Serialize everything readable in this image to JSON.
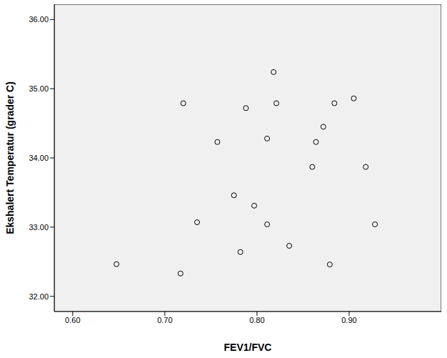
{
  "chart_data": {
    "type": "scatter",
    "x_label": "FEV1/FVC",
    "y_label": "Ekshalert Temperatur (grader C)",
    "x": [
      0.6475,
      0.717,
      0.72,
      0.735,
      0.757,
      0.775,
      0.782,
      0.788,
      0.797,
      0.811,
      0.811,
      0.818,
      0.821,
      0.835,
      0.86,
      0.864,
      0.872,
      0.879,
      0.884,
      0.905,
      0.918,
      0.928
    ],
    "y": [
      32.465,
      32.33,
      34.79,
      33.07,
      34.23,
      33.46,
      32.64,
      34.72,
      33.31,
      34.28,
      33.04,
      35.24,
      34.79,
      32.73,
      33.87,
      34.23,
      34.45,
      32.46,
      34.79,
      34.86,
      33.87,
      33.04
    ],
    "xlim": [
      0.58,
      1.0
    ],
    "ylim": [
      31.78,
      36.22
    ],
    "xticks": [
      {
        "value": 0.6,
        "label": "0.60"
      },
      {
        "value": 0.7,
        "label": "0.70"
      },
      {
        "value": 0.8,
        "label": "0.80"
      },
      {
        "value": 0.9,
        "label": "0.90"
      }
    ],
    "yticks": [
      {
        "value": 32,
        "label": "32.00"
      },
      {
        "value": 33,
        "label": "33.00"
      },
      {
        "value": 34,
        "label": "34.00"
      },
      {
        "value": 35,
        "label": "35.00"
      },
      {
        "value": 36,
        "label": "36.00"
      }
    ],
    "color": "#000000",
    "marker": "circle"
  }
}
